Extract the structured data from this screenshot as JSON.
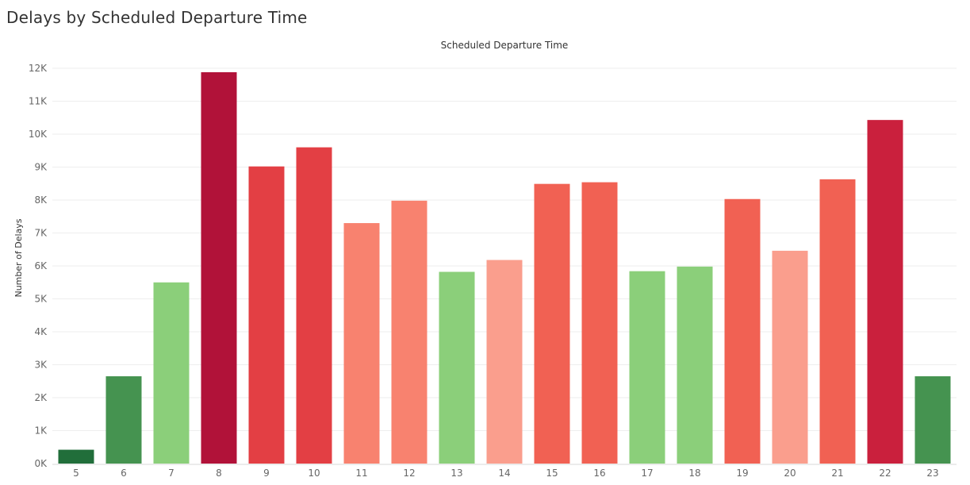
{
  "title": "Delays by Scheduled Departure Time",
  "colors": {
    "dark_green": "#216e3a",
    "green": "#459350",
    "light_green": "#8bcf7a",
    "light_salmon": "#fa9e8d",
    "salmon": "#f8826f",
    "orange_red": "#f16153",
    "red": "#e33f44",
    "crimson": "#ca203d",
    "dark_crimson": "#b11239",
    "grid": "#eeeeee",
    "axis": "#d9d9d9"
  },
  "chart_data": {
    "type": "bar",
    "title": "",
    "xlabel": "Scheduled Departure Time",
    "ylabel": "Number of Delays",
    "categories": [
      "5",
      "6",
      "7",
      "8",
      "9",
      "10",
      "11",
      "12",
      "13",
      "14",
      "15",
      "16",
      "17",
      "18",
      "19",
      "20",
      "21",
      "22",
      "23"
    ],
    "values": [
      420,
      2650,
      5500,
      11880,
      9020,
      9600,
      7300,
      7980,
      5820,
      6180,
      8490,
      8540,
      5840,
      5980,
      8030,
      6460,
      8630,
      10430,
      2650
    ],
    "bar_colors": [
      "dark_green",
      "green",
      "light_green",
      "dark_crimson",
      "red",
      "red",
      "salmon",
      "salmon",
      "light_green",
      "light_salmon",
      "orange_red",
      "orange_red",
      "light_green",
      "light_green",
      "orange_red",
      "light_salmon",
      "orange_red",
      "crimson",
      "green"
    ],
    "ylim": [
      0,
      12000
    ],
    "yticks": [
      "0K",
      "1K",
      "2K",
      "3K",
      "4K",
      "5K",
      "6K",
      "7K",
      "8K",
      "9K",
      "10K",
      "11K",
      "12K"
    ],
    "grid": true,
    "legend": "none"
  }
}
